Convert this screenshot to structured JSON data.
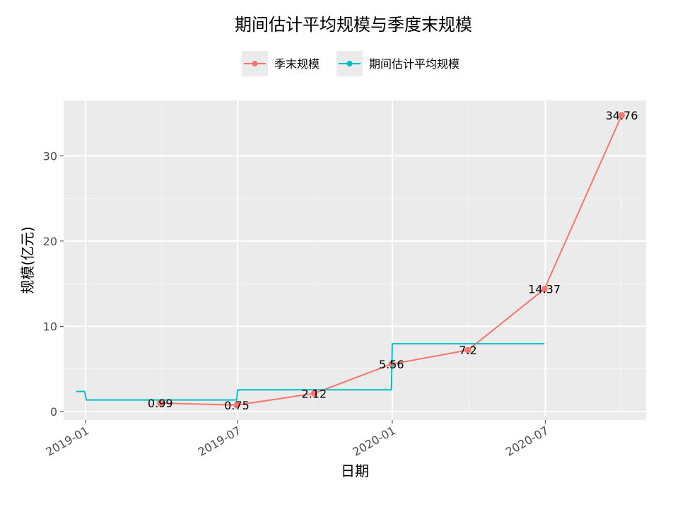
{
  "chart_data": {
    "type": "line",
    "title": "期间估计平均规模与季度末规模",
    "xlabel": "日期",
    "ylabel": "规模(亿元)",
    "x_ticks": [
      "2019-01",
      "2019-07",
      "2020-01",
      "2020-07"
    ],
    "y_ticks": [
      0,
      10,
      20,
      30
    ],
    "ylim": [
      -1.0,
      36.5
    ],
    "xlim": [
      "2018-12-06",
      "2020-10-29"
    ],
    "grid": true,
    "legend_position": "top",
    "series": [
      {
        "name": "季末规模",
        "color": "#F8766D",
        "style": "line-points-labels",
        "points": [
          {
            "x": "2019-03-31",
            "y": 0.99,
            "label": "0.99"
          },
          {
            "x": "2019-06-30",
            "y": 0.75,
            "label": "0.75"
          },
          {
            "x": "2019-09-30",
            "y": 2.12,
            "label": "2.12"
          },
          {
            "x": "2019-12-31",
            "y": 5.56,
            "label": "5.56"
          },
          {
            "x": "2020-03-31",
            "y": 7.2,
            "label": "7.2"
          },
          {
            "x": "2020-06-30",
            "y": 14.37,
            "label": "14.37"
          },
          {
            "x": "2020-09-30",
            "y": 34.76,
            "label": "34.76"
          }
        ]
      },
      {
        "name": "期间估计平均规模",
        "color": "#00BFC4",
        "style": "step",
        "points": [
          {
            "x": "2018-12-21",
            "y": 2.35
          },
          {
            "x": "2018-12-31",
            "y": 2.35
          },
          {
            "x": "2019-01-02",
            "y": 1.35
          },
          {
            "x": "2019-06-30",
            "y": 1.35
          },
          {
            "x": "2019-07-01",
            "y": 2.55
          },
          {
            "x": "2019-12-31",
            "y": 2.55
          },
          {
            "x": "2020-01-01",
            "y": 7.95
          },
          {
            "x": "2020-06-30",
            "y": 7.95
          }
        ]
      }
    ]
  }
}
